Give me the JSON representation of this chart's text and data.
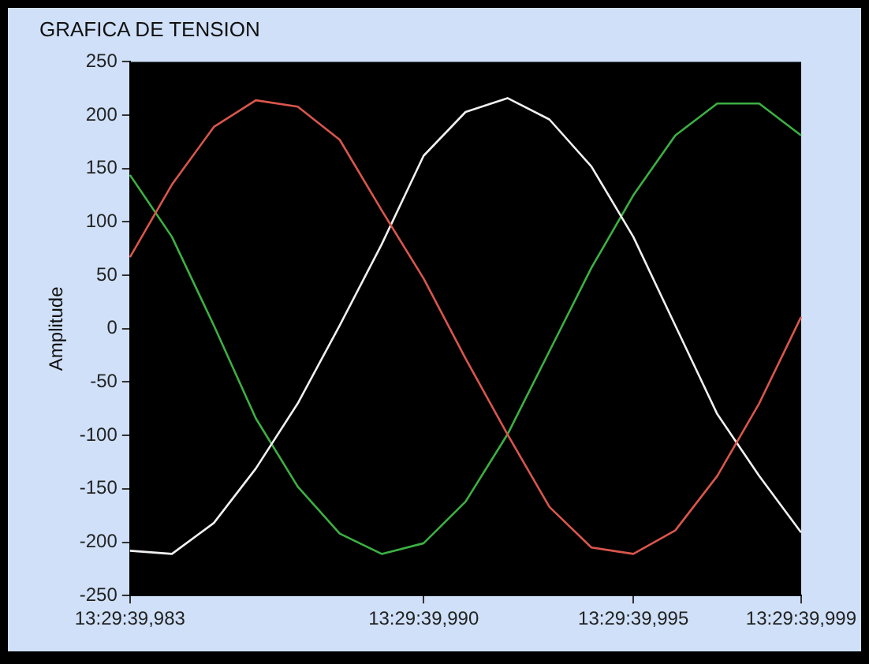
{
  "chart_data": {
    "type": "line",
    "title": "GRAFICA DE TENSION",
    "ylabel": "Amplitude",
    "categories": [
      "13:29:39,983",
      null,
      null,
      null,
      null,
      null,
      null,
      "13:29:39,990",
      null,
      null,
      null,
      null,
      "13:29:39,995",
      null,
      null,
      null,
      "13:29:39,999"
    ],
    "series": [
      {
        "color": "#d9564c",
        "values": [
          67,
          135,
          189,
          214,
          208,
          177,
          111,
          47,
          -28,
          -99,
          -167,
          -205,
          -211,
          -189,
          -138,
          -70,
          11
        ]
      },
      {
        "color": "#f0f0f0",
        "values": [
          -208,
          -211,
          -182,
          -131,
          -70,
          3,
          79,
          162,
          203,
          216,
          196,
          152,
          86,
          3,
          -80,
          -138,
          -191
        ]
      },
      {
        "color": "#3cb043",
        "values": [
          144,
          86,
          3,
          -84,
          -148,
          -192,
          -211,
          -201,
          -162,
          -99,
          -21,
          57,
          125,
          181,
          211,
          211,
          181
        ]
      }
    ],
    "ylim": [
      -250,
      250
    ],
    "yticks": [
      -250,
      -200,
      -150,
      -100,
      -50,
      0,
      50,
      100,
      150,
      200,
      250
    ],
    "grid": false,
    "legend": false,
    "marker": "none",
    "line_style": "solid"
  }
}
